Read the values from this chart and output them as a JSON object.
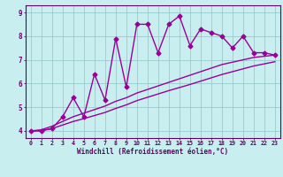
{
  "bg_color": "#c8eef0",
  "line_color": "#990099",
  "grid_color": "#99cccc",
  "xlabel": "Windchill (Refroidissement éolien,°C)",
  "xlabel_color": "#660066",
  "tick_color": "#660066",
  "axis_color": "#660066",
  "xlim": [
    -0.5,
    23.5
  ],
  "ylim": [
    3.7,
    9.3
  ],
  "yticks": [
    4,
    5,
    6,
    7,
    8,
    9
  ],
  "xticks": [
    0,
    1,
    2,
    3,
    4,
    5,
    6,
    7,
    8,
    9,
    10,
    11,
    12,
    13,
    14,
    15,
    16,
    17,
    18,
    19,
    20,
    21,
    22,
    23
  ],
  "line1_x": [
    0,
    1,
    2,
    3,
    4,
    5,
    6,
    7,
    8,
    9,
    10,
    11,
    12,
    13,
    14,
    15,
    16,
    17,
    18,
    19,
    20,
    21,
    22,
    23
  ],
  "line1_y": [
    4.0,
    4.0,
    4.1,
    4.6,
    5.4,
    4.6,
    6.4,
    5.3,
    7.9,
    5.85,
    8.5,
    8.5,
    7.3,
    8.5,
    8.85,
    7.6,
    8.3,
    8.15,
    8.0,
    7.5,
    8.0,
    7.3,
    7.3,
    7.2
  ],
  "line2_x": [
    0,
    1,
    2,
    3,
    4,
    5,
    6,
    7,
    8,
    9,
    10,
    11,
    12,
    13,
    14,
    15,
    16,
    17,
    18,
    19,
    20,
    21,
    22,
    23
  ],
  "line2_y": [
    4.0,
    4.05,
    4.2,
    4.4,
    4.6,
    4.75,
    4.9,
    5.05,
    5.25,
    5.4,
    5.6,
    5.75,
    5.9,
    6.05,
    6.2,
    6.35,
    6.5,
    6.65,
    6.8,
    6.9,
    7.0,
    7.1,
    7.15,
    7.2
  ],
  "line3_x": [
    0,
    1,
    2,
    3,
    4,
    5,
    6,
    7,
    8,
    9,
    10,
    11,
    12,
    13,
    14,
    15,
    16,
    17,
    18,
    19,
    20,
    21,
    22,
    23
  ],
  "line3_y": [
    4.0,
    4.02,
    4.1,
    4.25,
    4.4,
    4.52,
    4.65,
    4.78,
    4.95,
    5.1,
    5.28,
    5.42,
    5.56,
    5.7,
    5.83,
    5.96,
    6.1,
    6.24,
    6.38,
    6.5,
    6.62,
    6.74,
    6.83,
    6.92
  ],
  "marker": "D",
  "markersize": 2.5,
  "linewidth": 1.0
}
